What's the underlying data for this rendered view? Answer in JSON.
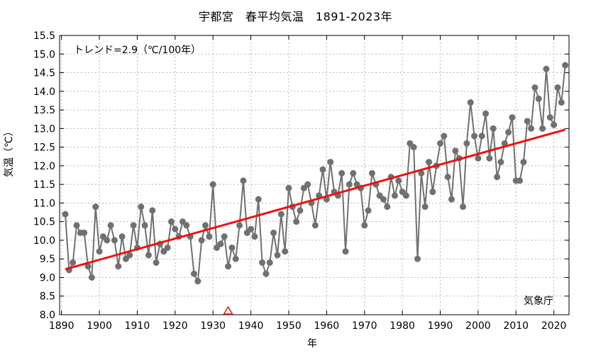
{
  "chart_data": {
    "type": "line",
    "title": "宇都宮　春平均気温　1891-2023年",
    "trend_label": "トレンド=2.9（℃/100年）",
    "credit": "気象庁",
    "xlabel": "年",
    "ylabel": "気温（℃）",
    "xlim": [
      1889.5,
      2024
    ],
    "ylim": [
      8.0,
      15.5
    ],
    "x_ticks": [
      "1890",
      "1900",
      "1910",
      "1920",
      "1930",
      "1940",
      "1950",
      "1960",
      "1970",
      "1980",
      "1990",
      "2000",
      "2010",
      "2020"
    ],
    "y_ticks": [
      "8.0",
      "8.5",
      "9.0",
      "9.5",
      "10.0",
      "10.5",
      "11.0",
      "11.5",
      "12.0",
      "12.5",
      "13.0",
      "13.5",
      "14.0",
      "14.5",
      "15.0",
      "15.5"
    ],
    "grid": true,
    "series_color": "#707070",
    "trend_color": "#ee1111",
    "marker_color": "#ee1111",
    "x": [
      1891,
      1892,
      1893,
      1894,
      1895,
      1896,
      1897,
      1898,
      1899,
      1900,
      1901,
      1902,
      1903,
      1904,
      1905,
      1906,
      1907,
      1908,
      1909,
      1910,
      1911,
      1912,
      1913,
      1914,
      1915,
      1916,
      1917,
      1918,
      1919,
      1920,
      1921,
      1922,
      1923,
      1924,
      1925,
      1926,
      1927,
      1928,
      1929,
      1930,
      1931,
      1932,
      1933,
      1934,
      1935,
      1936,
      1937,
      1938,
      1939,
      1940,
      1941,
      1942,
      1943,
      1944,
      1945,
      1946,
      1947,
      1948,
      1949,
      1950,
      1951,
      1952,
      1953,
      1954,
      1955,
      1956,
      1957,
      1958,
      1959,
      1960,
      1961,
      1962,
      1963,
      1964,
      1965,
      1966,
      1967,
      1968,
      1969,
      1970,
      1971,
      1972,
      1973,
      1974,
      1975,
      1976,
      1977,
      1978,
      1979,
      1980,
      1981,
      1982,
      1983,
      1984,
      1985,
      1986,
      1987,
      1988,
      1989,
      1990,
      1991,
      1992,
      1993,
      1994,
      1995,
      1996,
      1997,
      1998,
      1999,
      2000,
      2001,
      2002,
      2003,
      2004,
      2005,
      2006,
      2007,
      2008,
      2009,
      2010,
      2011,
      2012,
      2013,
      2014,
      2015,
      2016,
      2017,
      2018,
      2019,
      2020,
      2021,
      2022,
      2023
    ],
    "values": [
      10.7,
      9.2,
      9.4,
      10.4,
      10.2,
      10.2,
      9.3,
      9.0,
      10.9,
      9.7,
      10.1,
      10.0,
      10.4,
      10.0,
      9.3,
      10.1,
      9.5,
      9.6,
      10.4,
      9.8,
      10.9,
      10.4,
      9.6,
      10.8,
      9.4,
      9.9,
      9.7,
      9.8,
      10.5,
      10.3,
      10.1,
      10.5,
      10.4,
      10.1,
      9.1,
      8.9,
      10.0,
      10.4,
      10.1,
      11.5,
      9.8,
      9.9,
      10.1,
      9.3,
      9.8,
      9.5,
      10.4,
      11.6,
      10.2,
      10.3,
      10.1,
      11.1,
      9.4,
      9.1,
      9.4,
      10.2,
      9.6,
      10.7,
      9.7,
      11.4,
      10.9,
      10.5,
      10.8,
      11.4,
      11.5,
      11.0,
      10.4,
      11.2,
      11.9,
      11.1,
      12.1,
      11.3,
      11.2,
      11.8,
      9.7,
      11.5,
      11.8,
      11.5,
      11.4,
      10.4,
      10.8,
      11.8,
      11.5,
      11.2,
      11.1,
      10.9,
      11.7,
      11.2,
      11.6,
      11.3,
      11.2,
      12.6,
      12.5,
      9.5,
      11.8,
      10.9,
      12.1,
      11.3,
      12.0,
      12.6,
      12.8,
      11.7,
      11.1,
      12.4,
      12.2,
      10.9,
      12.6,
      13.7,
      12.8,
      12.2,
      12.8,
      13.4,
      12.2,
      13.0,
      11.7,
      12.1,
      12.6,
      12.9,
      13.3,
      11.6,
      11.6,
      12.1,
      13.2,
      13.0,
      14.1,
      13.8,
      13.0,
      14.6,
      13.3,
      13.1,
      14.1,
      13.7,
      14.7
    ],
    "trend_line": {
      "x": [
        1891,
        2023
      ],
      "y": [
        9.22,
        12.97
      ]
    },
    "marker_year": 1934
  }
}
